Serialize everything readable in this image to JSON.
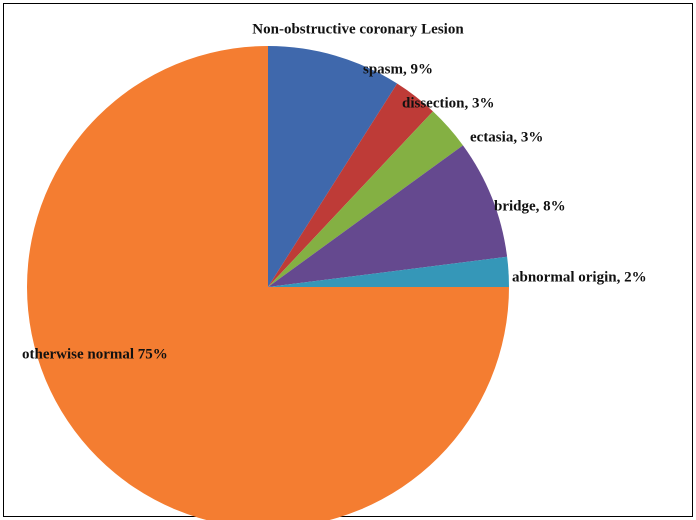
{
  "chart_data": {
    "type": "pie",
    "title": "Non-obstructive coronary Lesion",
    "values": [
      9,
      3,
      3,
      8,
      2,
      75
    ],
    "value_labels": [
      "spasm, 9%",
      "dissection, 3%",
      "ectasia, 3%",
      "bridge, 8%",
      "abnormal origin, 2%",
      "otherwise normal 75%"
    ],
    "colors": [
      "#3f68ac",
      "#be3b37",
      "#84b043",
      "#65498f",
      "#3597b8",
      "#f47d31"
    ]
  }
}
